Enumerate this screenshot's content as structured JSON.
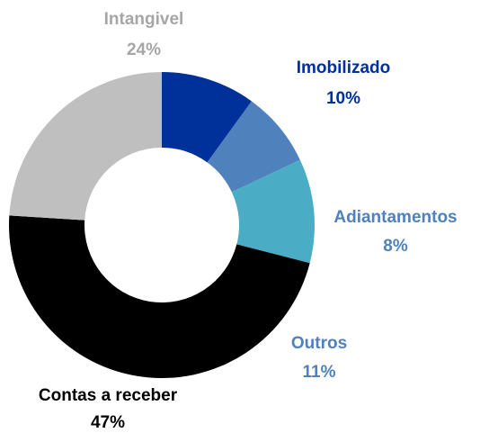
{
  "chart_data": {
    "type": "donut",
    "categories": [
      "Imobilizado",
      "Adiantamentos",
      "Outros",
      "Contas a receber",
      "Intangivel"
    ],
    "values": [
      10,
      8,
      11,
      47,
      24
    ],
    "value_labels": [
      "10%",
      "8%",
      "11%",
      "47%",
      "24%"
    ],
    "colors": [
      "#00309a",
      "#4f81bd",
      "#4bacc6",
      "#000000",
      "#bfbfbf"
    ],
    "label_colors": [
      "#00309a",
      "#4f81bd",
      "#4f81bd",
      "#000000",
      "#a6a6a6"
    ]
  }
}
